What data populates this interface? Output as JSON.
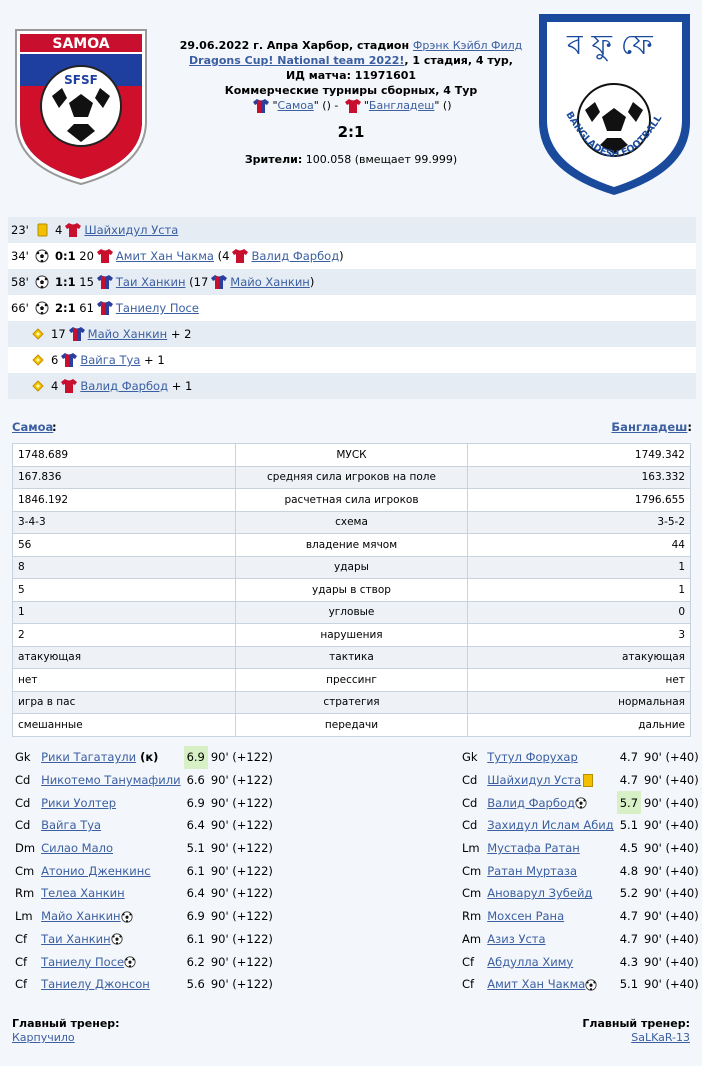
{
  "header": {
    "date_line": "29.06.2022 г. Апра Харбор, стадион ",
    "stadium_link": "Фрэнк Кэйбл Филд",
    "cup_link": "Dragons Cup! National team 2022!",
    "cup_suffix": ", 1 стадия, 4 тур,",
    "match_id": "ИД матча: 11971601",
    "tournament": "Коммерческие турниры сборных, 4 Тур",
    "home_link": "Самоа",
    "away_link": "Бангладеш",
    "score": "2:1",
    "attendance_label": "Зрители:",
    "attendance_value": "100.058 (вмещает 99.999)",
    "home_logo_text": "SAMOA",
    "home_logo_abbr": "SFSF",
    "away_logo_text": "BANGLADESH FOOTBALL FEDERATION",
    "colors": {
      "link": "#3b5fa1",
      "bg": "#f3f6fa",
      "row_alt": "#e6ecf4",
      "highlight": "#d7f0c6"
    }
  },
  "events": [
    {
      "minute": "23'",
      "type": "yellow-card-icon",
      "score": "",
      "num": "4",
      "player": "Шайхидул Уста",
      "assist_num": "",
      "assist": "",
      "bonus": ""
    },
    {
      "minute": "34'",
      "type": "goal-ball-icon",
      "score": "0:1",
      "num": "20",
      "player": "Амит Хан Чакма",
      "assist_num": "4",
      "assist": "Валид Фарбод",
      "bonus": ""
    },
    {
      "minute": "58'",
      "type": "goal-ball-icon",
      "score": "1:1",
      "num": "15",
      "player": "Таи Ханкин",
      "assist_num": "17",
      "assist": "Майо Ханкин",
      "bonus": ""
    },
    {
      "minute": "66'",
      "type": "goal-ball-icon",
      "score": "2:1",
      "num": "61",
      "player": "Таниелу Посе",
      "assist_num": "",
      "assist": "",
      "bonus": ""
    },
    {
      "minute": "",
      "type": "star-icon",
      "score": "",
      "num": "17",
      "player": "Майо Ханкин",
      "assist_num": "",
      "assist": "",
      "bonus": "+ 2"
    },
    {
      "minute": "",
      "type": "star-icon",
      "score": "",
      "num": "6",
      "player": "Вайга Туа",
      "assist_num": "",
      "assist": "",
      "bonus": "+ 1"
    },
    {
      "minute": "",
      "type": "star-icon",
      "score": "",
      "num": "4",
      "player": "Валид Фарбод",
      "assist_num": "",
      "assist": "",
      "bonus": "+ 1"
    }
  ],
  "teams": {
    "home": "Самоа",
    "away": "Бангладеш"
  },
  "stats": [
    {
      "home": "1748.689",
      "label": "МУСК",
      "away": "1749.342"
    },
    {
      "home": "167.836",
      "label": "средняя сила игроков на поле",
      "away": "163.332"
    },
    {
      "home": "1846.192",
      "label": "расчетная сила игроков",
      "away": "1796.655"
    },
    {
      "home": "3-4-3",
      "label": "схема",
      "away": "3-5-2"
    },
    {
      "home": "56",
      "label": "владение мячом",
      "away": "44"
    },
    {
      "home": "8",
      "label": "удары",
      "away": "1"
    },
    {
      "home": "5",
      "label": "удары в створ",
      "away": "1"
    },
    {
      "home": "1",
      "label": "угловые",
      "away": "0"
    },
    {
      "home": "2",
      "label": "нарушения",
      "away": "3"
    },
    {
      "home": "атакующая",
      "label": "тактика",
      "away": "атакующая"
    },
    {
      "home": "нет",
      "label": "прессинг",
      "away": "нет"
    },
    {
      "home": "игра в пас",
      "label": "стратегия",
      "away": "нормальная"
    },
    {
      "home": "смешанные",
      "label": "передачи",
      "away": "дальние"
    }
  ],
  "home_lineup": [
    {
      "pos": "Gk",
      "name": "Рики Тагатаули",
      "extra": " (к)",
      "mark": "",
      "rating": "6.9",
      "best": true,
      "time": "90' (+122)"
    },
    {
      "pos": "Cd",
      "name": "Никотемо Танумафили",
      "extra": "",
      "mark": "",
      "rating": "6.6",
      "best": false,
      "time": "90' (+122)"
    },
    {
      "pos": "Cd",
      "name": "Рики Уолтер",
      "extra": "",
      "mark": "",
      "rating": "6.9",
      "best": false,
      "time": "90' (+122)"
    },
    {
      "pos": "Cd",
      "name": "Вайга Туа",
      "extra": "",
      "mark": "",
      "rating": "6.4",
      "best": false,
      "time": "90' (+122)"
    },
    {
      "pos": "Dm",
      "name": "Силао Мало",
      "extra": "",
      "mark": "",
      "rating": "5.1",
      "best": false,
      "time": "90' (+122)"
    },
    {
      "pos": "Cm",
      "name": "Атонио Дженкинс",
      "extra": "",
      "mark": "",
      "rating": "6.1",
      "best": false,
      "time": "90' (+122)"
    },
    {
      "pos": "Rm",
      "name": "Телеа Ханкин",
      "extra": "",
      "mark": "",
      "rating": "6.4",
      "best": false,
      "time": "90' (+122)"
    },
    {
      "pos": "Lm",
      "name": "Майо Ханкин",
      "extra": "",
      "mark": "ball",
      "rating": "6.9",
      "best": false,
      "time": "90' (+122)"
    },
    {
      "pos": "Cf",
      "name": "Таи Ханкин",
      "extra": "",
      "mark": "ball",
      "rating": "6.1",
      "best": false,
      "time": "90' (+122)"
    },
    {
      "pos": "Cf",
      "name": "Таниелу Посе",
      "extra": "",
      "mark": "ball",
      "rating": "6.2",
      "best": false,
      "time": "90' (+122)"
    },
    {
      "pos": "Cf",
      "name": "Таниелу Джонсон",
      "extra": "",
      "mark": "",
      "rating": "5.6",
      "best": false,
      "time": "90' (+122)"
    }
  ],
  "away_lineup": [
    {
      "pos": "Gk",
      "name": "Тутул Форухар",
      "extra": "",
      "mark": "",
      "rating": "4.7",
      "best": false,
      "time": "90' (+40)"
    },
    {
      "pos": "Cd",
      "name": "Шайхидул Уста",
      "extra": "",
      "mark": "card",
      "rating": "4.7",
      "best": false,
      "time": "90' (+40)"
    },
    {
      "pos": "Cd",
      "name": "Валид Фарбод",
      "extra": "",
      "mark": "ball",
      "rating": "5.7",
      "best": true,
      "time": "90' (+40)"
    },
    {
      "pos": "Cd",
      "name": "Захидул Ислам Абид",
      "extra": "",
      "mark": "",
      "rating": "5.1",
      "best": false,
      "time": "90' (+40)"
    },
    {
      "pos": "Lm",
      "name": "Мустафа Ратан",
      "extra": "",
      "mark": "",
      "rating": "4.5",
      "best": false,
      "time": "90' (+40)"
    },
    {
      "pos": "Cm",
      "name": "Ратан Муртаза",
      "extra": "",
      "mark": "",
      "rating": "4.8",
      "best": false,
      "time": "90' (+40)"
    },
    {
      "pos": "Cm",
      "name": "Ановарул Зубейд",
      "extra": "",
      "mark": "",
      "rating": "5.2",
      "best": false,
      "time": "90' (+40)"
    },
    {
      "pos": "Rm",
      "name": "Мохсен Рана",
      "extra": "",
      "mark": "",
      "rating": "4.7",
      "best": false,
      "time": "90' (+40)"
    },
    {
      "pos": "Am",
      "name": "Азиз Уста",
      "extra": "",
      "mark": "",
      "rating": "4.7",
      "best": false,
      "time": "90' (+40)"
    },
    {
      "pos": "Cf",
      "name": "Абдулла Химу",
      "extra": "",
      "mark": "",
      "rating": "4.3",
      "best": false,
      "time": "90' (+40)"
    },
    {
      "pos": "Cf",
      "name": "Амит Хан Чакма",
      "extra": "",
      "mark": "ball",
      "rating": "5.1",
      "best": false,
      "time": "90' (+40)"
    }
  ],
  "coaches": {
    "label": "Главный тренер:",
    "home": "Карпучило",
    "away": "SaLKaR-13"
  }
}
